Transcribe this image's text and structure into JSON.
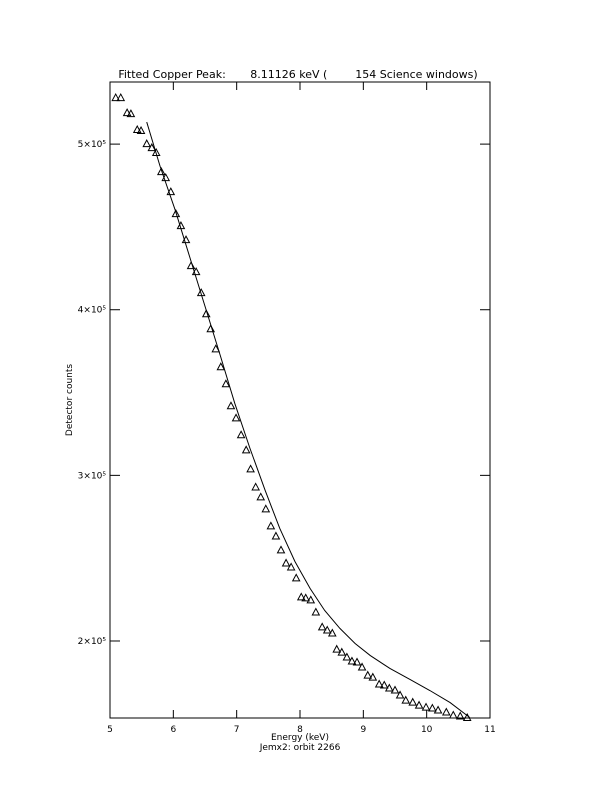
{
  "chart_data": {
    "type": "scatter",
    "title": "Fitted Copper Peak:       8.11126 keV (        154 Science windows)",
    "x_label": "Energy (keV)",
    "subtitle": "Jemx2: orbit 2266",
    "y_label": "Detector counts",
    "xlim": [
      5,
      11
    ],
    "xticks": [
      5,
      6,
      7,
      8,
      9,
      10,
      11
    ],
    "ylim": [
      153500,
      537500
    ],
    "yticks": [
      {
        "value": 200000,
        "label": "2×10⁵"
      },
      {
        "value": 300000,
        "label": "3×10⁵"
      },
      {
        "value": 400000,
        "label": "4×10⁵"
      },
      {
        "value": 500000,
        "label": "5×10⁵"
      }
    ],
    "series": [
      {
        "marker": "triangle",
        "color": "#000000",
        "x": [
          5.09,
          5.17,
          5.27,
          5.33,
          5.43,
          5.49,
          5.58,
          5.66,
          5.73,
          5.81,
          5.88,
          5.96,
          6.04,
          6.12,
          6.2,
          6.28,
          6.36,
          6.44,
          6.52,
          6.59,
          6.67,
          6.75,
          6.83,
          6.91,
          6.99,
          7.07,
          7.15,
          7.22,
          7.3,
          7.38,
          7.46,
          7.54,
          7.62,
          7.7,
          7.78,
          7.86,
          7.94,
          8.02,
          8.09,
          8.17,
          8.25,
          8.35,
          8.43,
          8.51,
          8.58,
          8.66,
          8.74,
          8.82,
          8.9,
          8.98,
          9.07,
          9.15,
          9.25,
          9.33,
          9.41,
          9.5,
          9.58,
          9.67,
          9.78,
          9.88,
          9.99,
          10.09,
          10.18,
          10.31,
          10.42,
          10.53,
          10.64
        ],
        "values": [
          527800,
          527800,
          518700,
          518100,
          508500,
          507900,
          500000,
          497600,
          494600,
          483100,
          479500,
          471000,
          457700,
          450500,
          442000,
          426300,
          422700,
          410000,
          397300,
          388200,
          376100,
          365300,
          355000,
          341700,
          334400,
          324200,
          315100,
          303600,
          292700,
          286700,
          279500,
          269200,
          263100,
          254700,
          246800,
          244400,
          237800,
          226300,
          225700,
          224500,
          217200,
          208200,
          206300,
          204500,
          194800,
          193000,
          190000,
          187600,
          187000,
          184000,
          179100,
          177900,
          173700,
          173100,
          171300,
          170100,
          167100,
          164000,
          162800,
          161000,
          159800,
          159200,
          158000,
          156800,
          155000,
          154400,
          153500
        ]
      },
      {
        "marker": "line",
        "color": "#000000",
        "x": [
          5.58,
          5.79,
          6.03,
          6.26,
          6.5,
          6.74,
          6.97,
          7.21,
          7.45,
          7.68,
          7.92,
          8.16,
          8.39,
          8.63,
          8.87,
          9.11,
          9.42,
          9.74,
          10.05,
          10.37,
          10.68
        ],
        "values": [
          513300,
          486700,
          460100,
          431700,
          402100,
          372500,
          343500,
          316300,
          290900,
          268000,
          248000,
          231700,
          218400,
          207600,
          198500,
          191200,
          183400,
          176700,
          170100,
          162800,
          153800
        ]
      }
    ]
  }
}
